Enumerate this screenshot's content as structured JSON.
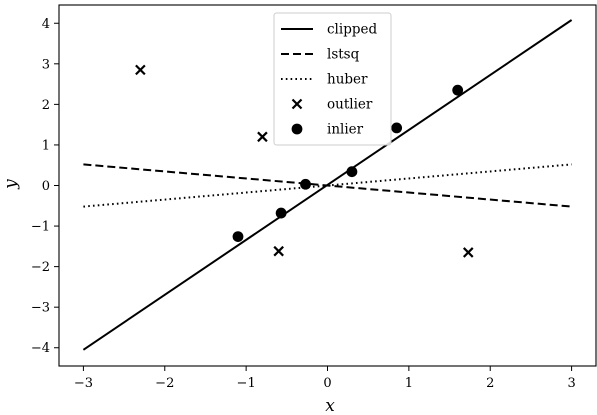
{
  "chart_data": {
    "type": "scatter",
    "title": "",
    "xlabel": "x",
    "ylabel": "y",
    "xlim": [
      -3.3,
      3.3
    ],
    "ylim": [
      -4.45,
      4.45
    ],
    "xticks": [
      -3,
      -2,
      -1,
      0,
      1,
      2,
      3
    ],
    "yticks": [
      -4,
      -3,
      -2,
      -1,
      0,
      1,
      2,
      3,
      4
    ],
    "xtick_labels": [
      "−3",
      "−2",
      "−1",
      "0",
      "1",
      "2",
      "3"
    ],
    "ytick_labels": [
      "−4",
      "−3",
      "−2",
      "−1",
      "0",
      "1",
      "2",
      "3",
      "4"
    ],
    "grid": false,
    "legend_position": "upper-center",
    "lines": [
      {
        "name": "clipped",
        "style": "solid",
        "x": [
          -3,
          3
        ],
        "y": [
          -4.05,
          4.08
        ]
      },
      {
        "name": "lstsq",
        "style": "dashed",
        "x": [
          -3,
          3
        ],
        "y": [
          0.52,
          -0.52
        ]
      },
      {
        "name": "huber",
        "style": "dotted",
        "x": [
          -3,
          3
        ],
        "y": [
          -0.52,
          0.52
        ]
      }
    ],
    "scatter": [
      {
        "name": "outlier",
        "marker": "x",
        "points": [
          [
            -2.3,
            2.85
          ],
          [
            -0.8,
            1.2
          ],
          [
            -0.6,
            -1.62
          ],
          [
            1.73,
            -1.65
          ]
        ]
      },
      {
        "name": "inlier",
        "marker": "o",
        "points": [
          [
            -1.1,
            -1.26
          ],
          [
            -0.57,
            -0.68
          ],
          [
            -0.27,
            0.03
          ],
          [
            0.3,
            0.34
          ],
          [
            0.85,
            1.42
          ],
          [
            1.6,
            2.35
          ]
        ]
      }
    ],
    "color": "#000000"
  }
}
